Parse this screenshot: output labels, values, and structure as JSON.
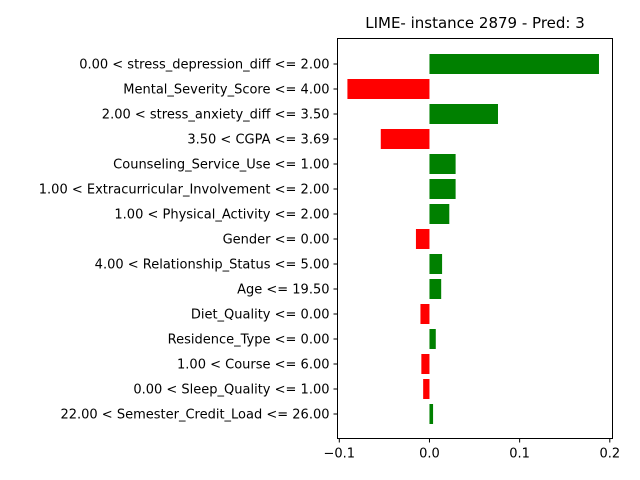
{
  "chart_data": {
    "type": "bar",
    "orientation": "horizontal",
    "title": "LIME- instance 2879 - Pred: 3",
    "xlabel": "",
    "ylabel": "",
    "xlim": [
      -0.102,
      0.203
    ],
    "xticks": [
      -0.1,
      0.0,
      0.1,
      0.2
    ],
    "xtick_labels": [
      "−0.1",
      "0.0",
      "0.1",
      "0.2"
    ],
    "grid": false,
    "positive_color": "#008000",
    "negative_color": "#ff0000",
    "categories": [
      "0.00 < stress_depression_diff <= 2.00",
      "Mental_Severity_Score <= 4.00",
      "2.00 < stress_anxiety_diff <= 3.50",
      "3.50 < CGPA <= 3.69",
      "Counseling_Service_Use <= 1.00",
      "1.00 < Extracurricular_Involvement <= 2.00",
      "1.00 < Physical_Activity <= 2.00",
      "Gender <= 0.00",
      "4.00 < Relationship_Status <= 5.00",
      "Age <= 19.50",
      "Diet_Quality <= 0.00",
      "Residence_Type <= 0.00",
      "1.00 < Course <= 6.00",
      "0.00 < Sleep_Quality <= 1.00",
      "22.00 < Semester_Credit_Load <= 26.00"
    ],
    "values": [
      0.188,
      -0.091,
      0.076,
      -0.054,
      0.029,
      0.029,
      0.022,
      -0.015,
      0.014,
      0.013,
      -0.01,
      0.007,
      -0.009,
      -0.007,
      0.004
    ]
  }
}
